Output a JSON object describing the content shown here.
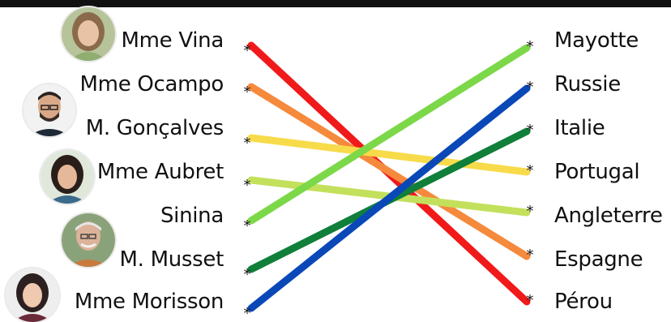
{
  "people": [
    {
      "id": "vina",
      "label": "Mme Vina",
      "icon": "woman-portrait-icon"
    },
    {
      "id": "ocampo",
      "label": "Mme Ocampo",
      "icon": "man-portrait-icon"
    },
    {
      "id": "goncalves",
      "label": "M. Gonçalves",
      "icon": ""
    },
    {
      "id": "aubret",
      "label": "Mme Aubret",
      "icon": "woman-portrait-icon"
    },
    {
      "id": "sinina",
      "label": "Sinina",
      "icon": ""
    },
    {
      "id": "musset",
      "label": "M. Musset",
      "icon": "man-portrait-icon"
    },
    {
      "id": "morisson",
      "label": "Mme Morisson",
      "icon": "woman-portrait-icon"
    }
  ],
  "countries": [
    {
      "id": "mayotte",
      "label": "Mayotte"
    },
    {
      "id": "russie",
      "label": "Russie"
    },
    {
      "id": "italie",
      "label": "Italie"
    },
    {
      "id": "portugal",
      "label": "Portugal"
    },
    {
      "id": "angleterre",
      "label": "Angleterre"
    },
    {
      "id": "espagne",
      "label": "Espagne"
    },
    {
      "id": "perou",
      "label": "Pérou"
    }
  ],
  "connections": [
    {
      "from": "vina",
      "to": "perou",
      "color": "#f01a1a"
    },
    {
      "from": "ocampo",
      "to": "espagne",
      "color": "#f58a3c"
    },
    {
      "from": "goncalves",
      "to": "portugal",
      "color": "#f8db4a"
    },
    {
      "from": "aubret",
      "to": "angleterre",
      "color": "#c3e05c"
    },
    {
      "from": "sinina",
      "to": "mayotte",
      "color": "#7cd848"
    },
    {
      "from": "musset",
      "to": "italie",
      "color": "#0f7f3a"
    },
    {
      "from": "morisson",
      "to": "russie",
      "color": "#0a48b8"
    }
  ],
  "colors": {
    "top_bar": "#111111",
    "text": "#111111"
  }
}
